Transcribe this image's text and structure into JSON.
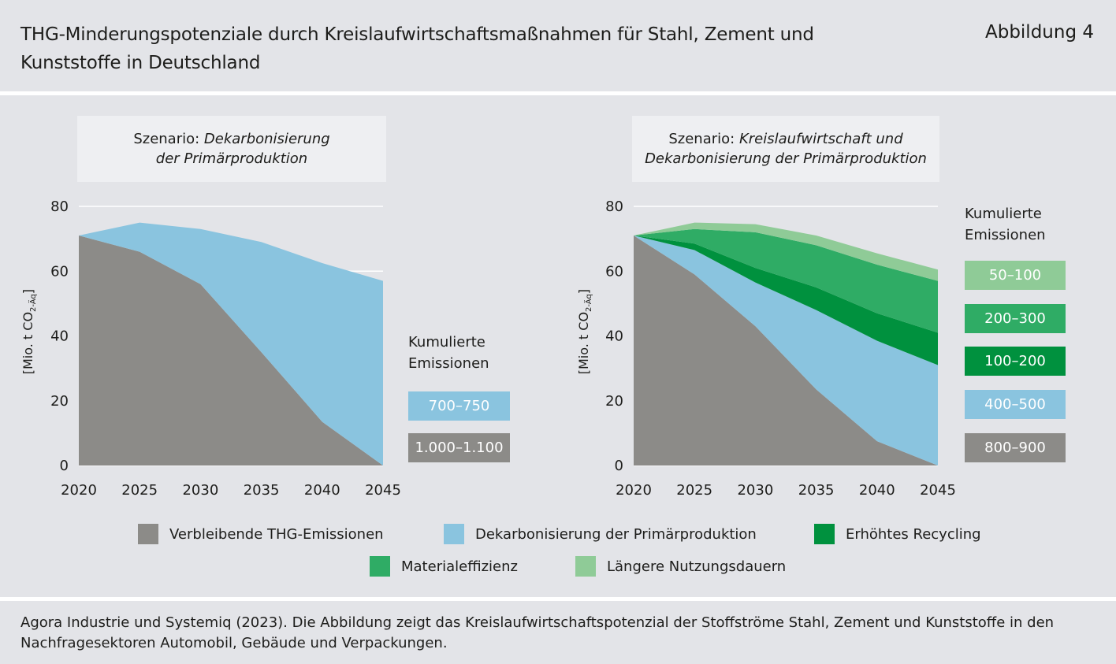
{
  "title": "THG-Minderungspotenziale durch Kreislaufwirtschaftsmaßnahmen für Stahl, Zement und Kunststoffe in Deutschland",
  "figure_label": "Abbildung 4",
  "source": "Agora Industrie und Systemiq (2023). Die Abbildung zeigt das Kreislaufwirtschaftspotenzial der Stoffströme Stahl, Zement und Kunststoffe in den Nachfragesektoren Automobil, Gebäude und Verpackungen.",
  "colors": {
    "grey": "#8c8b88",
    "lightblue": "#8ac4df",
    "darkgreen": "#00913e",
    "midgreen": "#2fac65",
    "lightgreen": "#8fcb97"
  },
  "legend": [
    {
      "label": "Verbleibende THG-Emissionen",
      "color": "#8c8b88"
    },
    {
      "label": "Dekarbonisierung der Primärproduktion",
      "color": "#8ac4df"
    },
    {
      "label": "Erhöhtes Recycling",
      "color": "#00913e"
    },
    {
      "label": "Materialeffizienz",
      "color": "#2fac65"
    },
    {
      "label": "Längere Nutzungsdauern",
      "color": "#8fcb97"
    }
  ],
  "chart_data": [
    {
      "type": "area",
      "scenario_prefix": "Szenario: ",
      "scenario_line1": "Dekarbonisierung",
      "scenario_line2": "der Primärproduktion",
      "ylabel": "[Mio. t CO2-Äq]",
      "ylim": [
        0,
        80
      ],
      "yticks": [
        0,
        20,
        40,
        60,
        80
      ],
      "x": [
        2020,
        2025,
        2030,
        2035,
        2040,
        2045
      ],
      "stacked": true,
      "series": [
        {
          "key": "grey",
          "values": [
            71,
            66,
            56,
            35,
            13.5,
            0
          ]
        },
        {
          "key": "lightblue",
          "values": [
            0,
            9,
            17,
            34,
            49,
            57
          ]
        }
      ],
      "cumulative_title_line1": "Kumulierte",
      "cumulative_title_line2": "Emissionen",
      "cumulative": [
        {
          "label": "700–750",
          "color": "#8ac4df"
        },
        {
          "label": "1.000–1.100",
          "color": "#8c8b88"
        }
      ]
    },
    {
      "type": "area",
      "scenario_prefix": "Szenario: ",
      "scenario_line1": "Kreislaufwirtschaft und",
      "scenario_line2": "Dekarbonisierung der Primärproduktion",
      "ylabel": "[Mio. t CO2-Äq]",
      "ylim": [
        0,
        80
      ],
      "yticks": [
        0,
        20,
        40,
        60,
        80
      ],
      "x": [
        2020,
        2025,
        2030,
        2035,
        2040,
        2045
      ],
      "stacked": true,
      "series": [
        {
          "key": "grey",
          "values": [
            71,
            59,
            43,
            23.5,
            7.5,
            0
          ]
        },
        {
          "key": "lightblue",
          "values": [
            0,
            7.5,
            13.5,
            24.5,
            31,
            31
          ]
        },
        {
          "key": "darkgreen",
          "values": [
            0,
            2,
            4.5,
            7,
            8.5,
            10
          ]
        },
        {
          "key": "midgreen",
          "values": [
            0,
            4.5,
            11,
            13,
            15,
            16
          ]
        },
        {
          "key": "lightgreen",
          "values": [
            0,
            2,
            2.5,
            3,
            3.5,
            3.5
          ]
        }
      ],
      "cumulative_title_line1": "Kumulierte",
      "cumulative_title_line2": "Emissionen",
      "cumulative": [
        {
          "label": "50–100",
          "color": "#8fcb97"
        },
        {
          "label": "200–300",
          "color": "#2fac65"
        },
        {
          "label": "100–200",
          "color": "#00913e"
        },
        {
          "label": "400–500",
          "color": "#8ac4df"
        },
        {
          "label": "800–900",
          "color": "#8c8b88"
        }
      ]
    }
  ]
}
